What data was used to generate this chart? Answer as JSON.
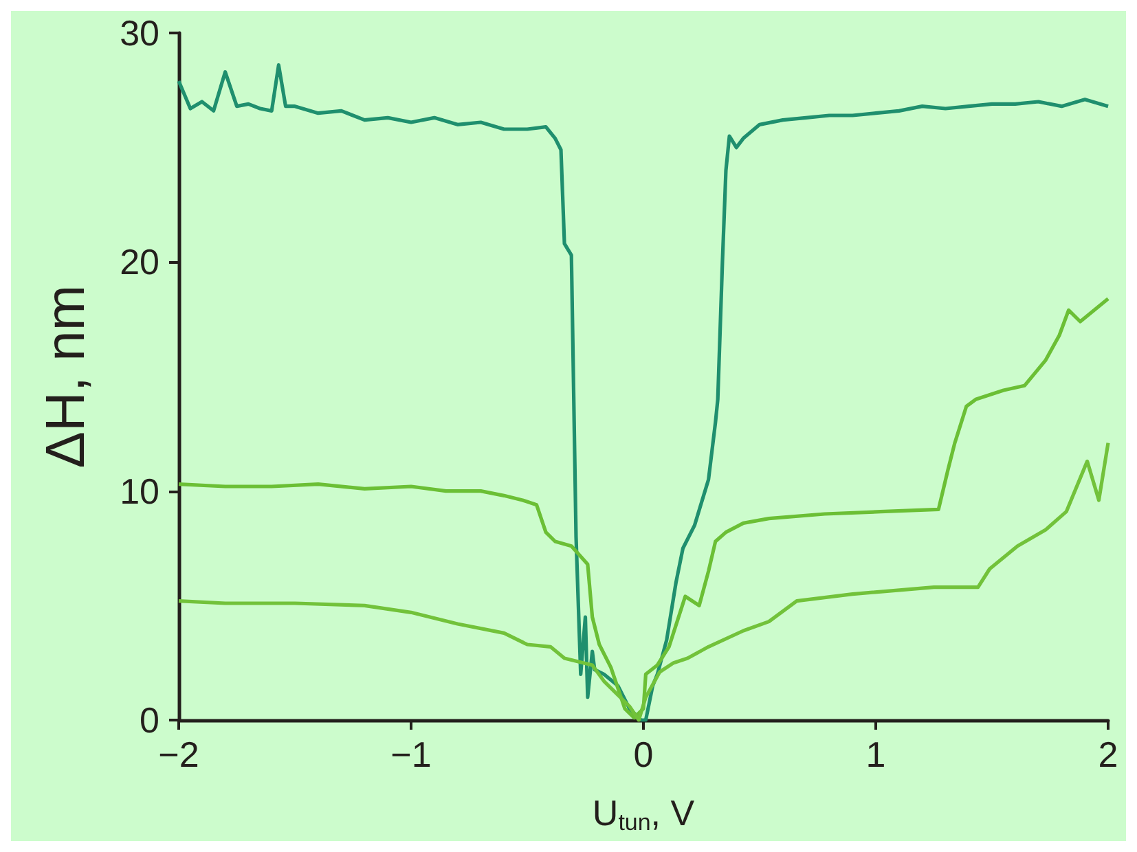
{
  "chart_data": {
    "type": "line",
    "xlabel": "U$_{tun}$, V",
    "ylabel": "ΔH, nm",
    "xlim": [
      -2,
      2
    ],
    "xticks": [
      {
        "value": -2,
        "label": "−2"
      },
      {
        "value": -1,
        "label": "−1"
      },
      0,
      1,
      2
    ],
    "ylim": [
      0,
      30
    ],
    "yticks": [
      0,
      10,
      20,
      30
    ],
    "series": [
      {
        "color": "#1f8f6e",
        "x": [
          -2,
          -1.95,
          -1.9,
          -1.85,
          -1.8,
          -1.75,
          -1.7,
          -1.65,
          -1.6,
          -1.57,
          -1.54,
          -1.5,
          -1.4,
          -1.3,
          -1.2,
          -1.1,
          -1,
          -0.9,
          -0.8,
          -0.7,
          -0.6,
          -0.5,
          -0.42,
          -0.38,
          -0.355,
          -0.34,
          -0.31,
          -0.29,
          -0.27,
          -0.25,
          -0.24,
          -0.22,
          -0.21,
          -0.17,
          -0.11,
          -0.06,
          -0.01,
          0.01,
          0.04,
          0.06,
          0.1,
          0.14,
          0.17,
          0.22,
          0.25,
          0.28,
          0.31,
          0.32,
          0.34,
          0.355,
          0.37,
          0.4,
          0.43,
          0.5,
          0.6,
          0.7,
          0.8,
          0.9,
          1,
          1.1,
          1.2,
          1.3,
          1.4,
          1.5,
          1.6,
          1.7,
          1.8,
          1.9,
          2
        ],
        "values": [
          27.9,
          26.7,
          27,
          26.6,
          28.3,
          26.8,
          26.9,
          26.7,
          26.6,
          28.6,
          26.8,
          26.8,
          26.5,
          26.6,
          26.2,
          26.3,
          26.1,
          26.3,
          26,
          26.1,
          25.8,
          25.8,
          25.9,
          25.4,
          24.9,
          20.8,
          20.3,
          8,
          2,
          4.5,
          1,
          3,
          2.2,
          2,
          1.5,
          0.5,
          0,
          0,
          1.5,
          2,
          3.5,
          6,
          7.5,
          8.5,
          9.5,
          10.5,
          13,
          14,
          20,
          24,
          25.5,
          25,
          25.4,
          26,
          26.2,
          26.3,
          26.4,
          26.4,
          26.5,
          26.6,
          26.8,
          26.7,
          26.8,
          26.9,
          26.9,
          27,
          26.8,
          27.1,
          26.8
        ]
      },
      {
        "color": "#6bbf35",
        "x": [
          -2,
          -1.8,
          -1.6,
          -1.4,
          -1.2,
          -1,
          -0.85,
          -0.7,
          -0.6,
          -0.52,
          -0.46,
          -0.42,
          -0.38,
          -0.31,
          -0.24,
          -0.22,
          -0.19,
          -0.14,
          -0.08,
          -0.04,
          0,
          0.01,
          0.06,
          0.11,
          0.18,
          0.24,
          0.28,
          0.31,
          0.355,
          0.43,
          0.54,
          0.78,
          1.02,
          1.27,
          1.31,
          1.34,
          1.39,
          1.43,
          1.55,
          1.64,
          1.73,
          1.79,
          1.83,
          1.88,
          2
        ],
        "values": [
          10.3,
          10.2,
          10.2,
          10.3,
          10.1,
          10.2,
          10,
          10,
          9.8,
          9.6,
          9.4,
          8.2,
          7.8,
          7.6,
          6.8,
          4.5,
          3.3,
          2.3,
          0.5,
          0.1,
          0.5,
          2,
          2.4,
          3.2,
          5.4,
          5,
          6.5,
          7.8,
          8.2,
          8.6,
          8.8,
          9,
          9.1,
          9.2,
          10.9,
          12.1,
          13.7,
          14,
          14.4,
          14.6,
          15.7,
          16.8,
          17.9,
          17.4,
          18.4
        ]
      },
      {
        "color": "#72c23a",
        "x": [
          -2,
          -1.8,
          -1.5,
          -1.2,
          -1,
          -0.8,
          -0.6,
          -0.5,
          -0.4,
          -0.34,
          -0.22,
          -0.17,
          -0.11,
          -0.06,
          -0.02,
          0.01,
          0.07,
          0.13,
          0.19,
          0.28,
          0.43,
          0.54,
          0.66,
          0.9,
          1.25,
          1.44,
          1.49,
          1.61,
          1.73,
          1.82,
          1.91,
          1.96,
          2
        ],
        "values": [
          5.2,
          5.1,
          5.1,
          5,
          4.7,
          4.2,
          3.8,
          3.3,
          3.2,
          2.7,
          2.4,
          1.7,
          1.1,
          0.6,
          0,
          1,
          2.1,
          2.5,
          2.7,
          3.2,
          3.9,
          4.3,
          5.2,
          5.5,
          5.8,
          5.8,
          6.6,
          7.6,
          8.3,
          9.1,
          11.3,
          9.6,
          12.1
        ]
      }
    ]
  }
}
